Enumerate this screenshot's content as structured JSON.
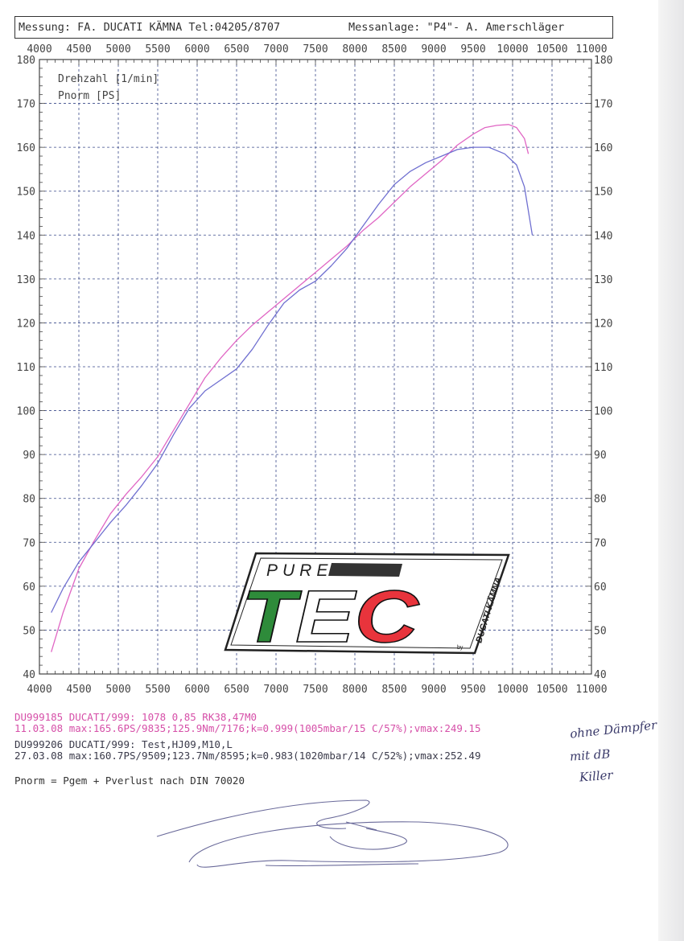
{
  "header": {
    "left": "Messung: FA. DUCATI KÄMNA  Tel:04205/8707",
    "right": "Messanlage: \"P4\"- A. Amerschläger"
  },
  "chart_data": {
    "type": "line",
    "xlabel": "Drehzahl [1/min]",
    "ylabel": "Pnorm [PS]",
    "xlim": [
      4000,
      11000
    ],
    "ylim": [
      40,
      180
    ],
    "x_ticks": [
      "4000",
      "4500",
      "5000",
      "5500",
      "6000",
      "6500",
      "7000",
      "7500",
      "8000",
      "8500",
      "9000",
      "9500",
      "10000",
      "10500",
      "11000"
    ],
    "y_ticks": [
      "40",
      "50",
      "60",
      "70",
      "80",
      "90",
      "100",
      "110",
      "120",
      "130",
      "140",
      "150",
      "160",
      "170",
      "180"
    ],
    "grid": true,
    "series": [
      {
        "name": "DU999185",
        "color": "#e066c4",
        "x": [
          4150,
          4300,
          4500,
          4700,
          4900,
          5100,
          5300,
          5500,
          5700,
          5900,
          6100,
          6300,
          6500,
          6700,
          6900,
          7100,
          7300,
          7500,
          7700,
          7900,
          8100,
          8300,
          8500,
          8700,
          8900,
          9100,
          9300,
          9500,
          9650,
          9800,
          9950,
          10050,
          10150,
          10200
        ],
        "y": [
          45,
          54,
          64,
          70.5,
          76.5,
          81,
          85,
          89.5,
          95.5,
          101.5,
          107.5,
          112,
          116,
          119.5,
          122.5,
          125.5,
          128.5,
          131.5,
          134.5,
          137.5,
          141,
          144,
          147.5,
          151,
          154,
          157,
          160.5,
          163,
          164.5,
          165,
          165.2,
          164.5,
          162,
          158.5
        ]
      },
      {
        "name": "DU999206",
        "color": "#6f6fd0",
        "x": [
          4150,
          4300,
          4500,
          4700,
          4900,
          5100,
          5300,
          5500,
          5700,
          5900,
          6100,
          6300,
          6500,
          6700,
          6900,
          7100,
          7300,
          7500,
          7700,
          7900,
          8100,
          8300,
          8500,
          8700,
          8900,
          9100,
          9300,
          9500,
          9700,
          9900,
          10050,
          10150,
          10250
        ],
        "y": [
          54,
          59.5,
          65.5,
          70,
          74.5,
          78.5,
          83,
          88,
          94.5,
          100.5,
          104.5,
          107,
          109.5,
          114,
          119.5,
          124.5,
          127.5,
          129.5,
          133,
          137,
          142,
          147,
          151.5,
          154.5,
          156.5,
          158,
          159.5,
          160,
          160,
          158.5,
          156,
          151,
          140
        ]
      }
    ]
  },
  "logo": {
    "line1": "PURE",
    "line2": "TEC",
    "side": "DUCATI KÄMNA",
    "by": "by"
  },
  "info": {
    "row1": "DU999185  DUCATI/999:             1078  0,85 RK38,47M0",
    "row2": "11.03.08  max:165.6PS/9835;125.9Nm/7176;k=0.999(1005mbar/15 C/57%);vmax:249.15",
    "row3": "DU999206  DUCATI/999:             Test,HJ09,M10,L",
    "row4": "27.03.08  max:160.7PS/9509;123.7Nm/8595;k=0.983(1020mbar/14 C/52%);vmax:252.49"
  },
  "handwritten": {
    "note1": "ohne Dämpfer",
    "note2": "mit dB",
    "note3": "Killer"
  },
  "footnote": "Pnorm = Pgem + Pverlust nach DIN 70020"
}
